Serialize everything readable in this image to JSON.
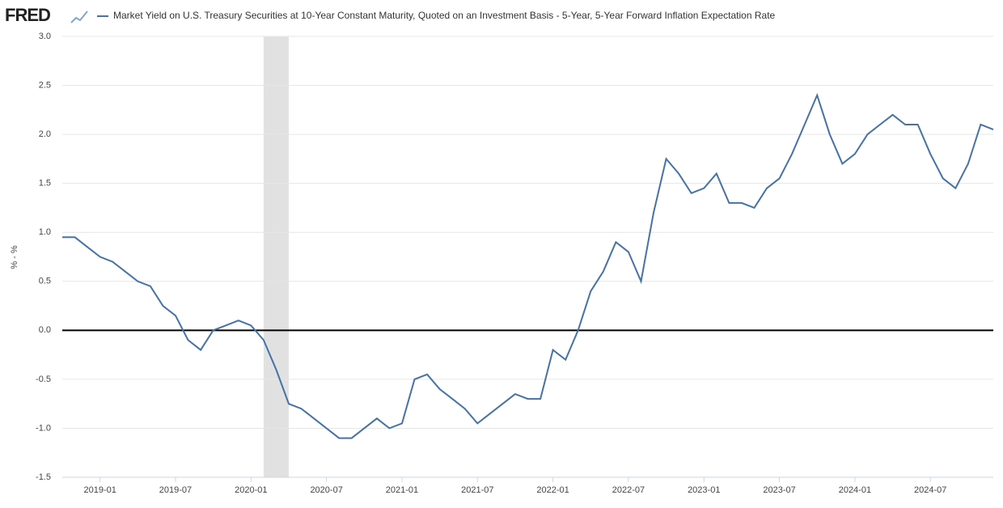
{
  "logo": "FRED",
  "chart_data": {
    "type": "line",
    "series": [
      {
        "name": "Market Yield on U.S. Treasury Securities at 10-Year Constant Maturity, Quoted on an Investment Basis - 5-Year, 5-Year Forward Inflation Expectation Rate",
        "color": "#4572a7",
        "values": [
          0.95,
          0.95,
          0.85,
          0.75,
          0.7,
          0.6,
          0.5,
          0.45,
          0.25,
          0.15,
          -0.1,
          -0.2,
          0.0,
          0.05,
          0.1,
          0.05,
          -0.1,
          -0.4,
          -0.75,
          -0.8,
          -0.9,
          -1.0,
          -1.1,
          -1.1,
          -1.0,
          -0.9,
          -1.0,
          -0.95,
          -0.5,
          -0.45,
          -0.6,
          -0.7,
          -0.8,
          -0.95,
          -0.85,
          -0.75,
          -0.65,
          -0.7,
          -0.7,
          -0.2,
          -0.3,
          0.0,
          0.4,
          0.6,
          0.9,
          0.8,
          0.5,
          1.2,
          1.75,
          1.6,
          1.4,
          1.45,
          1.6,
          1.3,
          1.3,
          1.25,
          1.45,
          1.55,
          1.8,
          2.1,
          2.4,
          2.0,
          1.7,
          1.8,
          2.0,
          2.1,
          2.2,
          2.1,
          2.1,
          1.8,
          1.55,
          1.45,
          1.7,
          2.1,
          2.05
        ]
      }
    ],
    "x": [
      "2018-10",
      "2018-11",
      "2018-12",
      "2019-01",
      "2019-02",
      "2019-03",
      "2019-04",
      "2019-05",
      "2019-06",
      "2019-07",
      "2019-08",
      "2019-09",
      "2019-10",
      "2019-11",
      "2019-12",
      "2020-01",
      "2020-02",
      "2020-03",
      "2020-04",
      "2020-05",
      "2020-06",
      "2020-07",
      "2020-08",
      "2020-09",
      "2020-10",
      "2020-11",
      "2020-12",
      "2021-01",
      "2021-02",
      "2021-03",
      "2021-04",
      "2021-05",
      "2021-06",
      "2021-07",
      "2021-08",
      "2021-09",
      "2021-10",
      "2021-11",
      "2021-12",
      "2022-01",
      "2022-02",
      "2022-03",
      "2022-04",
      "2022-05",
      "2022-06",
      "2022-07",
      "2022-08",
      "2022-09",
      "2022-10",
      "2022-11",
      "2022-12",
      "2023-01",
      "2023-02",
      "2023-03",
      "2023-04",
      "2023-05",
      "2023-06",
      "2023-07",
      "2023-08",
      "2023-09",
      "2023-10",
      "2023-11",
      "2023-12",
      "2024-01",
      "2024-02",
      "2024-03",
      "2024-04",
      "2024-05",
      "2024-06",
      "2024-07",
      "2024-08",
      "2024-09",
      "2024-10",
      "2024-11",
      "2024-12"
    ],
    "xlim": [
      "2018-10",
      "2024-12"
    ],
    "xticks": [
      "2019-01",
      "2019-07",
      "2020-01",
      "2020-07",
      "2021-01",
      "2021-07",
      "2022-01",
      "2022-07",
      "2023-01",
      "2023-07",
      "2024-01",
      "2024-07"
    ],
    "ylabel": "% - %",
    "ylim": [
      -1.5,
      3
    ],
    "yticks": [
      -1.5,
      {
        "value": -1,
        "label": "-1.0"
      },
      -0.5,
      {
        "value": 0,
        "label": "0.0"
      },
      0.5,
      {
        "value": 1,
        "label": "1.0"
      },
      1.5,
      {
        "value": 2,
        "label": "2.0"
      },
      2.5,
      {
        "value": 3,
        "label": "3.0"
      }
    ],
    "grid": true,
    "recession": [
      "2020-02",
      "2020-04"
    ]
  }
}
